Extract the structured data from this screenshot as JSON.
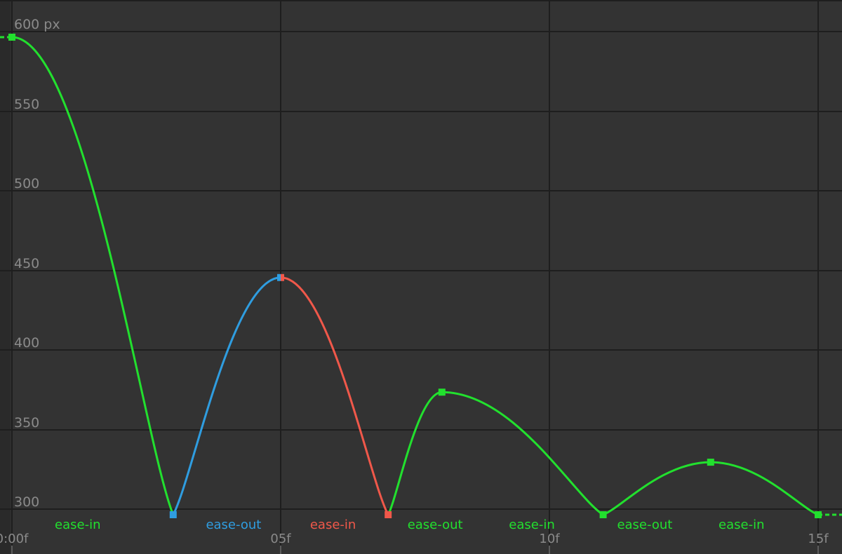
{
  "app": {
    "panel": "graph-editor"
  },
  "chart_data": {
    "type": "line",
    "title": "",
    "xlabel": "",
    "ylabel": "",
    "x_unit": "frames",
    "y_unit": "px",
    "xlim": [
      0,
      15.3
    ],
    "ylim": [
      296,
      620
    ],
    "grid": true,
    "y_ticks": [
      {
        "value": 600,
        "label": "600 px"
      },
      {
        "value": 550,
        "label": "550"
      },
      {
        "value": 500,
        "label": "500"
      },
      {
        "value": 450,
        "label": "450"
      },
      {
        "value": 400,
        "label": "400"
      },
      {
        "value": 350,
        "label": "350"
      },
      {
        "value": 300,
        "label": "300"
      }
    ],
    "x_ticks": [
      {
        "value": 0,
        "label": "0:00f"
      },
      {
        "value": 5,
        "label": "05f"
      },
      {
        "value": 10,
        "label": "10f"
      },
      {
        "value": 15,
        "label": "15f"
      }
    ],
    "colors": {
      "background": "#333333",
      "grid": "#1e1e1e",
      "axis_text": "#8a8a8a",
      "green": "#22e02e",
      "blue": "#2f9de0",
      "red": "#f0584a"
    },
    "keyframes": [
      {
        "frame": 0,
        "value": 598
      },
      {
        "frame": 3,
        "value": 298
      },
      {
        "frame": 5,
        "value": 447
      },
      {
        "frame": 7,
        "value": 298
      },
      {
        "frame": 8.0,
        "value": 375
      },
      {
        "frame": 11,
        "value": 298
      },
      {
        "frame": 13,
        "value": 331
      },
      {
        "frame": 15,
        "value": 298
      }
    ],
    "segments": [
      {
        "from_frame": 0,
        "to_frame": 3,
        "from_value": 598,
        "to_value": 298,
        "easing": "ease-in",
        "color": "#22e02e"
      },
      {
        "from_frame": 3,
        "to_frame": 5,
        "from_value": 298,
        "to_value": 447,
        "easing": "ease-out",
        "color": "#2f9de0"
      },
      {
        "from_frame": 5,
        "to_frame": 7,
        "from_value": 447,
        "to_value": 298,
        "easing": "ease-in",
        "color": "#f0584a"
      },
      {
        "from_frame": 7,
        "to_frame": 8.0,
        "from_value": 298,
        "to_value": 375,
        "easing": "ease-out",
        "color": "#22e02e"
      },
      {
        "from_frame": 8.0,
        "to_frame": 11,
        "from_value": 375,
        "to_value": 298,
        "easing": "ease-in",
        "color": "#22e02e"
      },
      {
        "from_frame": 11,
        "to_frame": 13,
        "from_value": 298,
        "to_value": 331,
        "easing": "ease-out",
        "color": "#22e02e"
      },
      {
        "from_frame": 13,
        "to_frame": 15,
        "from_value": 331,
        "to_value": 298,
        "easing": "ease-in",
        "color": "#22e02e"
      }
    ],
    "segment_labels": [
      {
        "text": "ease-in",
        "frame": 1.25,
        "color": "#22e02e"
      },
      {
        "text": "ease-out",
        "frame": 4.15,
        "color": "#2f9de0"
      },
      {
        "text": "ease-in",
        "frame": 6.0,
        "color": "#f0584a"
      },
      {
        "text": "ease-out",
        "frame": 7.9,
        "color": "#22e02e"
      },
      {
        "text": "ease-in",
        "frame": 9.7,
        "color": "#22e02e"
      },
      {
        "text": "ease-out",
        "frame": 11.8,
        "color": "#22e02e"
      },
      {
        "text": "ease-in",
        "frame": 13.6,
        "color": "#22e02e"
      }
    ]
  }
}
